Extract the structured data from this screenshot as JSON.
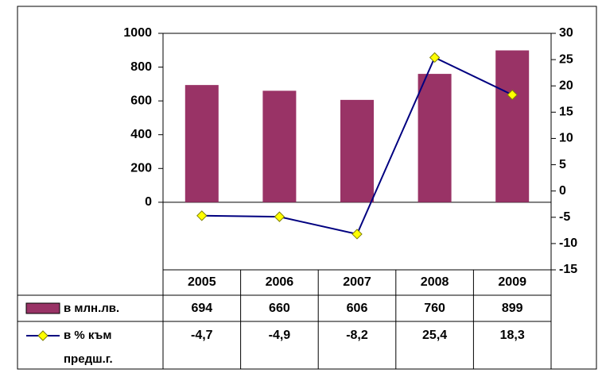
{
  "chart_data": {
    "type": "bar",
    "categories": [
      "2005",
      "2006",
      "2007",
      "2008",
      "2009"
    ],
    "series": [
      {
        "name": "в млн.лв.",
        "type": "bar",
        "color": "#993366",
        "values": [
          694,
          660,
          606,
          760,
          899
        ]
      },
      {
        "name": "в % към предш.г.",
        "type": "line",
        "axis": "y2",
        "color": "#000080",
        "marker_color": "#ffff00",
        "values": [
          -4.7,
          -4.9,
          -8.2,
          25.4,
          18.3
        ],
        "value_labels": [
          "-4,7",
          "-4,9",
          "-8,2",
          "25,4",
          "18,3"
        ]
      }
    ],
    "ylim": [
      -400,
      1000
    ],
    "yticks": [
      0,
      200,
      400,
      600,
      800,
      1000
    ],
    "y2lim": [
      -15,
      30
    ],
    "y2ticks": [
      -15,
      -10,
      -5,
      0,
      5,
      10,
      15,
      20,
      25,
      30
    ],
    "grid": false
  }
}
